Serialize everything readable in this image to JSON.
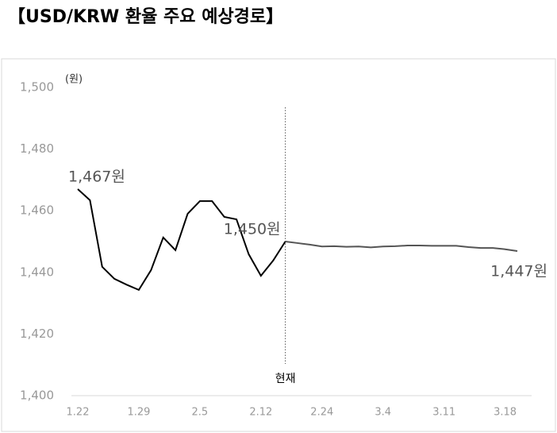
{
  "chart_data": {
    "type": "line",
    "title": "【USD/KRW 환율 주요 예상경로】",
    "y_label": "(원)",
    "annotation": "현재",
    "categories": [
      "1.22",
      null,
      null,
      null,
      null,
      "1.29",
      null,
      null,
      null,
      null,
      "2.5",
      null,
      null,
      null,
      null,
      "2.12",
      null,
      null,
      null,
      null,
      "2.24",
      null,
      null,
      null,
      null,
      "3.4",
      null,
      null,
      null,
      null,
      "3.11",
      null,
      null,
      null,
      null,
      "3.18",
      null
    ],
    "series": [
      {
        "color": "#000000",
        "values": [
          1467,
          1463.4,
          1441.8,
          1437.9,
          1436,
          1434.3,
          1440.7,
          1451.3,
          1447.2,
          1459,
          1463.1,
          1463.1,
          1458,
          1457.2,
          1445.9,
          1438.9,
          1443.8,
          1450,
          null,
          null,
          null,
          null,
          null,
          null,
          null,
          null,
          null,
          null,
          null,
          null,
          null,
          null,
          null,
          null,
          null,
          null,
          null
        ],
        "value_labels": [
          "1,467원",
          null,
          null,
          null,
          null,
          null,
          null,
          null,
          null,
          null,
          null,
          null,
          null,
          null,
          null,
          null,
          null,
          "1,450원",
          null,
          null,
          null,
          null,
          null,
          null,
          null,
          null,
          null,
          null,
          null,
          null,
          null,
          null,
          null,
          null,
          null,
          null,
          null
        ]
      },
      {
        "color": "#555555",
        "values": [
          null,
          null,
          null,
          null,
          null,
          null,
          null,
          null,
          null,
          null,
          null,
          null,
          null,
          null,
          null,
          null,
          null,
          1450,
          1449.5,
          1449,
          1448.4,
          1448.5,
          1448.3,
          1448.4,
          1448.1,
          1448.4,
          1448.5,
          1448.7,
          1448.7,
          1448.6,
          1448.6,
          1448.6,
          1448.2,
          1447.9,
          1447.9,
          1447.5,
          1446.9
        ],
        "value_labels": [
          null,
          null,
          null,
          null,
          null,
          null,
          null,
          null,
          null,
          null,
          null,
          null,
          null,
          null,
          null,
          null,
          null,
          null,
          null,
          null,
          null,
          null,
          null,
          null,
          null,
          null,
          null,
          null,
          null,
          null,
          null,
          null,
          null,
          null,
          null,
          null,
          "1,447원"
        ]
      }
    ],
    "ylim": [
      1400,
      1500
    ],
    "yticks": [
      {
        "value": 1400,
        "label": "1,400"
      },
      {
        "value": 1420,
        "label": "1,420"
      },
      {
        "value": 1440,
        "label": "1,440"
      },
      {
        "value": 1460,
        "label": "1,460"
      },
      {
        "value": 1480,
        "label": "1,480"
      },
      {
        "value": 1500,
        "label": "1,500"
      }
    ],
    "grid": false
  }
}
